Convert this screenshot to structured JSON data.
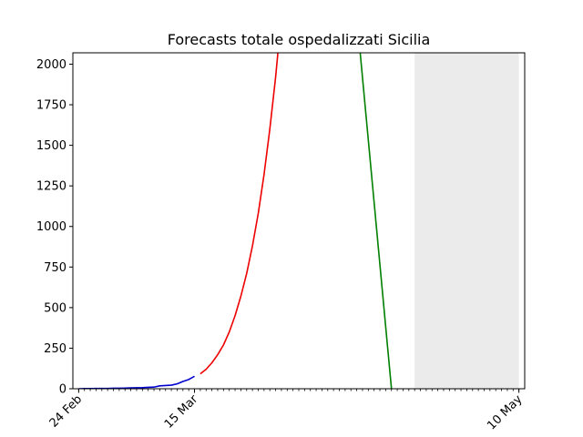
{
  "chart_data": {
    "type": "line",
    "title": "Forecasts totale ospedalizzati Sicilia",
    "xlabel": "",
    "ylabel": "",
    "xlim": [
      "2020-02-23",
      "2020-05-11"
    ],
    "ylim": [
      0,
      2070
    ],
    "x_ticks": [
      {
        "date": "2020-02-24",
        "label": "24 Feb"
      },
      {
        "date": "2020-03-15",
        "label": "15 Mar"
      },
      {
        "date": "2020-05-10",
        "label": "10 May"
      }
    ],
    "y_ticks": [
      0,
      250,
      500,
      750,
      1000,
      1250,
      1500,
      1750,
      2000
    ],
    "minor_x_ticks": "daily",
    "shaded_region": {
      "from": "2020-04-22",
      "to": "2020-05-10",
      "color": "#ebebeb"
    },
    "grid": false,
    "legend": "none",
    "series": [
      {
        "color": "#0000cc",
        "points": [
          [
            "2020-02-24",
            0
          ],
          [
            "2020-02-25",
            1
          ],
          [
            "2020-02-26",
            1
          ],
          [
            "2020-02-27",
            2
          ],
          [
            "2020-02-28",
            2
          ],
          [
            "2020-02-29",
            2
          ],
          [
            "2020-03-01",
            3
          ],
          [
            "2020-03-02",
            3
          ],
          [
            "2020-03-03",
            4
          ],
          [
            "2020-03-04",
            5
          ],
          [
            "2020-03-05",
            6
          ],
          [
            "2020-03-06",
            7
          ],
          [
            "2020-03-07",
            9
          ],
          [
            "2020-03-08",
            10
          ],
          [
            "2020-03-09",
            18
          ],
          [
            "2020-03-10",
            20
          ],
          [
            "2020-03-11",
            22
          ],
          [
            "2020-03-12",
            30
          ],
          [
            "2020-03-13",
            45
          ],
          [
            "2020-03-14",
            57
          ],
          [
            "2020-03-15",
            77
          ]
        ]
      },
      {
        "color": "#ee0000",
        "points": [
          [
            "2020-03-16",
            92
          ],
          [
            "2020-03-17",
            120
          ],
          [
            "2020-03-18",
            160
          ],
          [
            "2020-03-19",
            210
          ],
          [
            "2020-03-20",
            270
          ],
          [
            "2020-03-21",
            350
          ],
          [
            "2020-03-22",
            450
          ],
          [
            "2020-03-23",
            570
          ],
          [
            "2020-03-24",
            710
          ],
          [
            "2020-03-25",
            880
          ],
          [
            "2020-03-26",
            1080
          ],
          [
            "2020-03-27",
            1320
          ],
          [
            "2020-03-28",
            1600
          ],
          [
            "2020-03-29",
            1920
          ],
          [
            "2020-03-30",
            2300
          ]
        ]
      },
      {
        "color": "#008000",
        "points": [
          [
            "2020-04-12",
            2300
          ],
          [
            "2020-04-18",
            0
          ]
        ]
      }
    ]
  }
}
